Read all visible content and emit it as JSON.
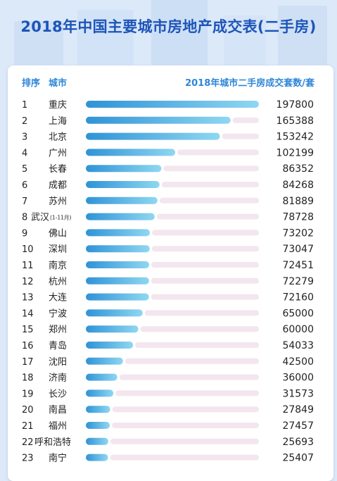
{
  "title": "2018年中国主要城市房地产成交表(二手房)",
  "header": {
    "rank_label": "排序",
    "city_label": "城市",
    "value_label": "2018年城市二手房成交套数/套"
  },
  "colors": {
    "bar_start": "#2f93d6",
    "bar_end": "#8fd7f2",
    "track": "#f3e6ee",
    "text": "#222222",
    "title": "#1d55b8",
    "header": "#2e86d8"
  },
  "chart_data": {
    "type": "bar",
    "orientation": "horizontal",
    "title": "2018年中国主要城市房地产成交表(二手房)",
    "xlabel": "2018年城市二手房成交套数/套",
    "ylabel": "城市",
    "xlim": [
      0,
      197800
    ],
    "categories": [
      "重庆",
      "上海",
      "北京",
      "广州",
      "长春",
      "成都",
      "苏州",
      "武汉",
      "佛山",
      "深圳",
      "南京",
      "杭州",
      "大连",
      "宁波",
      "郑州",
      "青岛",
      "沈阳",
      "济南",
      "长沙",
      "南昌",
      "福州",
      "呼和浩特",
      "南宁"
    ],
    "ranks": [
      "1",
      "2",
      "3",
      "4",
      "5",
      "6",
      "7",
      "8",
      "9",
      "10",
      "11",
      "12",
      "13",
      "14",
      "15",
      "16",
      "17",
      "18",
      "19",
      "20",
      "21",
      "22",
      "23"
    ],
    "notes": [
      "",
      "",
      "",
      "",
      "",
      "",
      "",
      "(1-11月)",
      "",
      "",
      "",
      "",
      "",
      "",
      "",
      "",
      "",
      "",
      "",
      "",
      "",
      "",
      ""
    ],
    "values": [
      197800,
      165388,
      153242,
      102199,
      86352,
      84268,
      81889,
      78728,
      73202,
      73047,
      72451,
      72279,
      72160,
      65000,
      60000,
      54033,
      42500,
      36000,
      31573,
      27849,
      27457,
      25693,
      25407
    ]
  }
}
